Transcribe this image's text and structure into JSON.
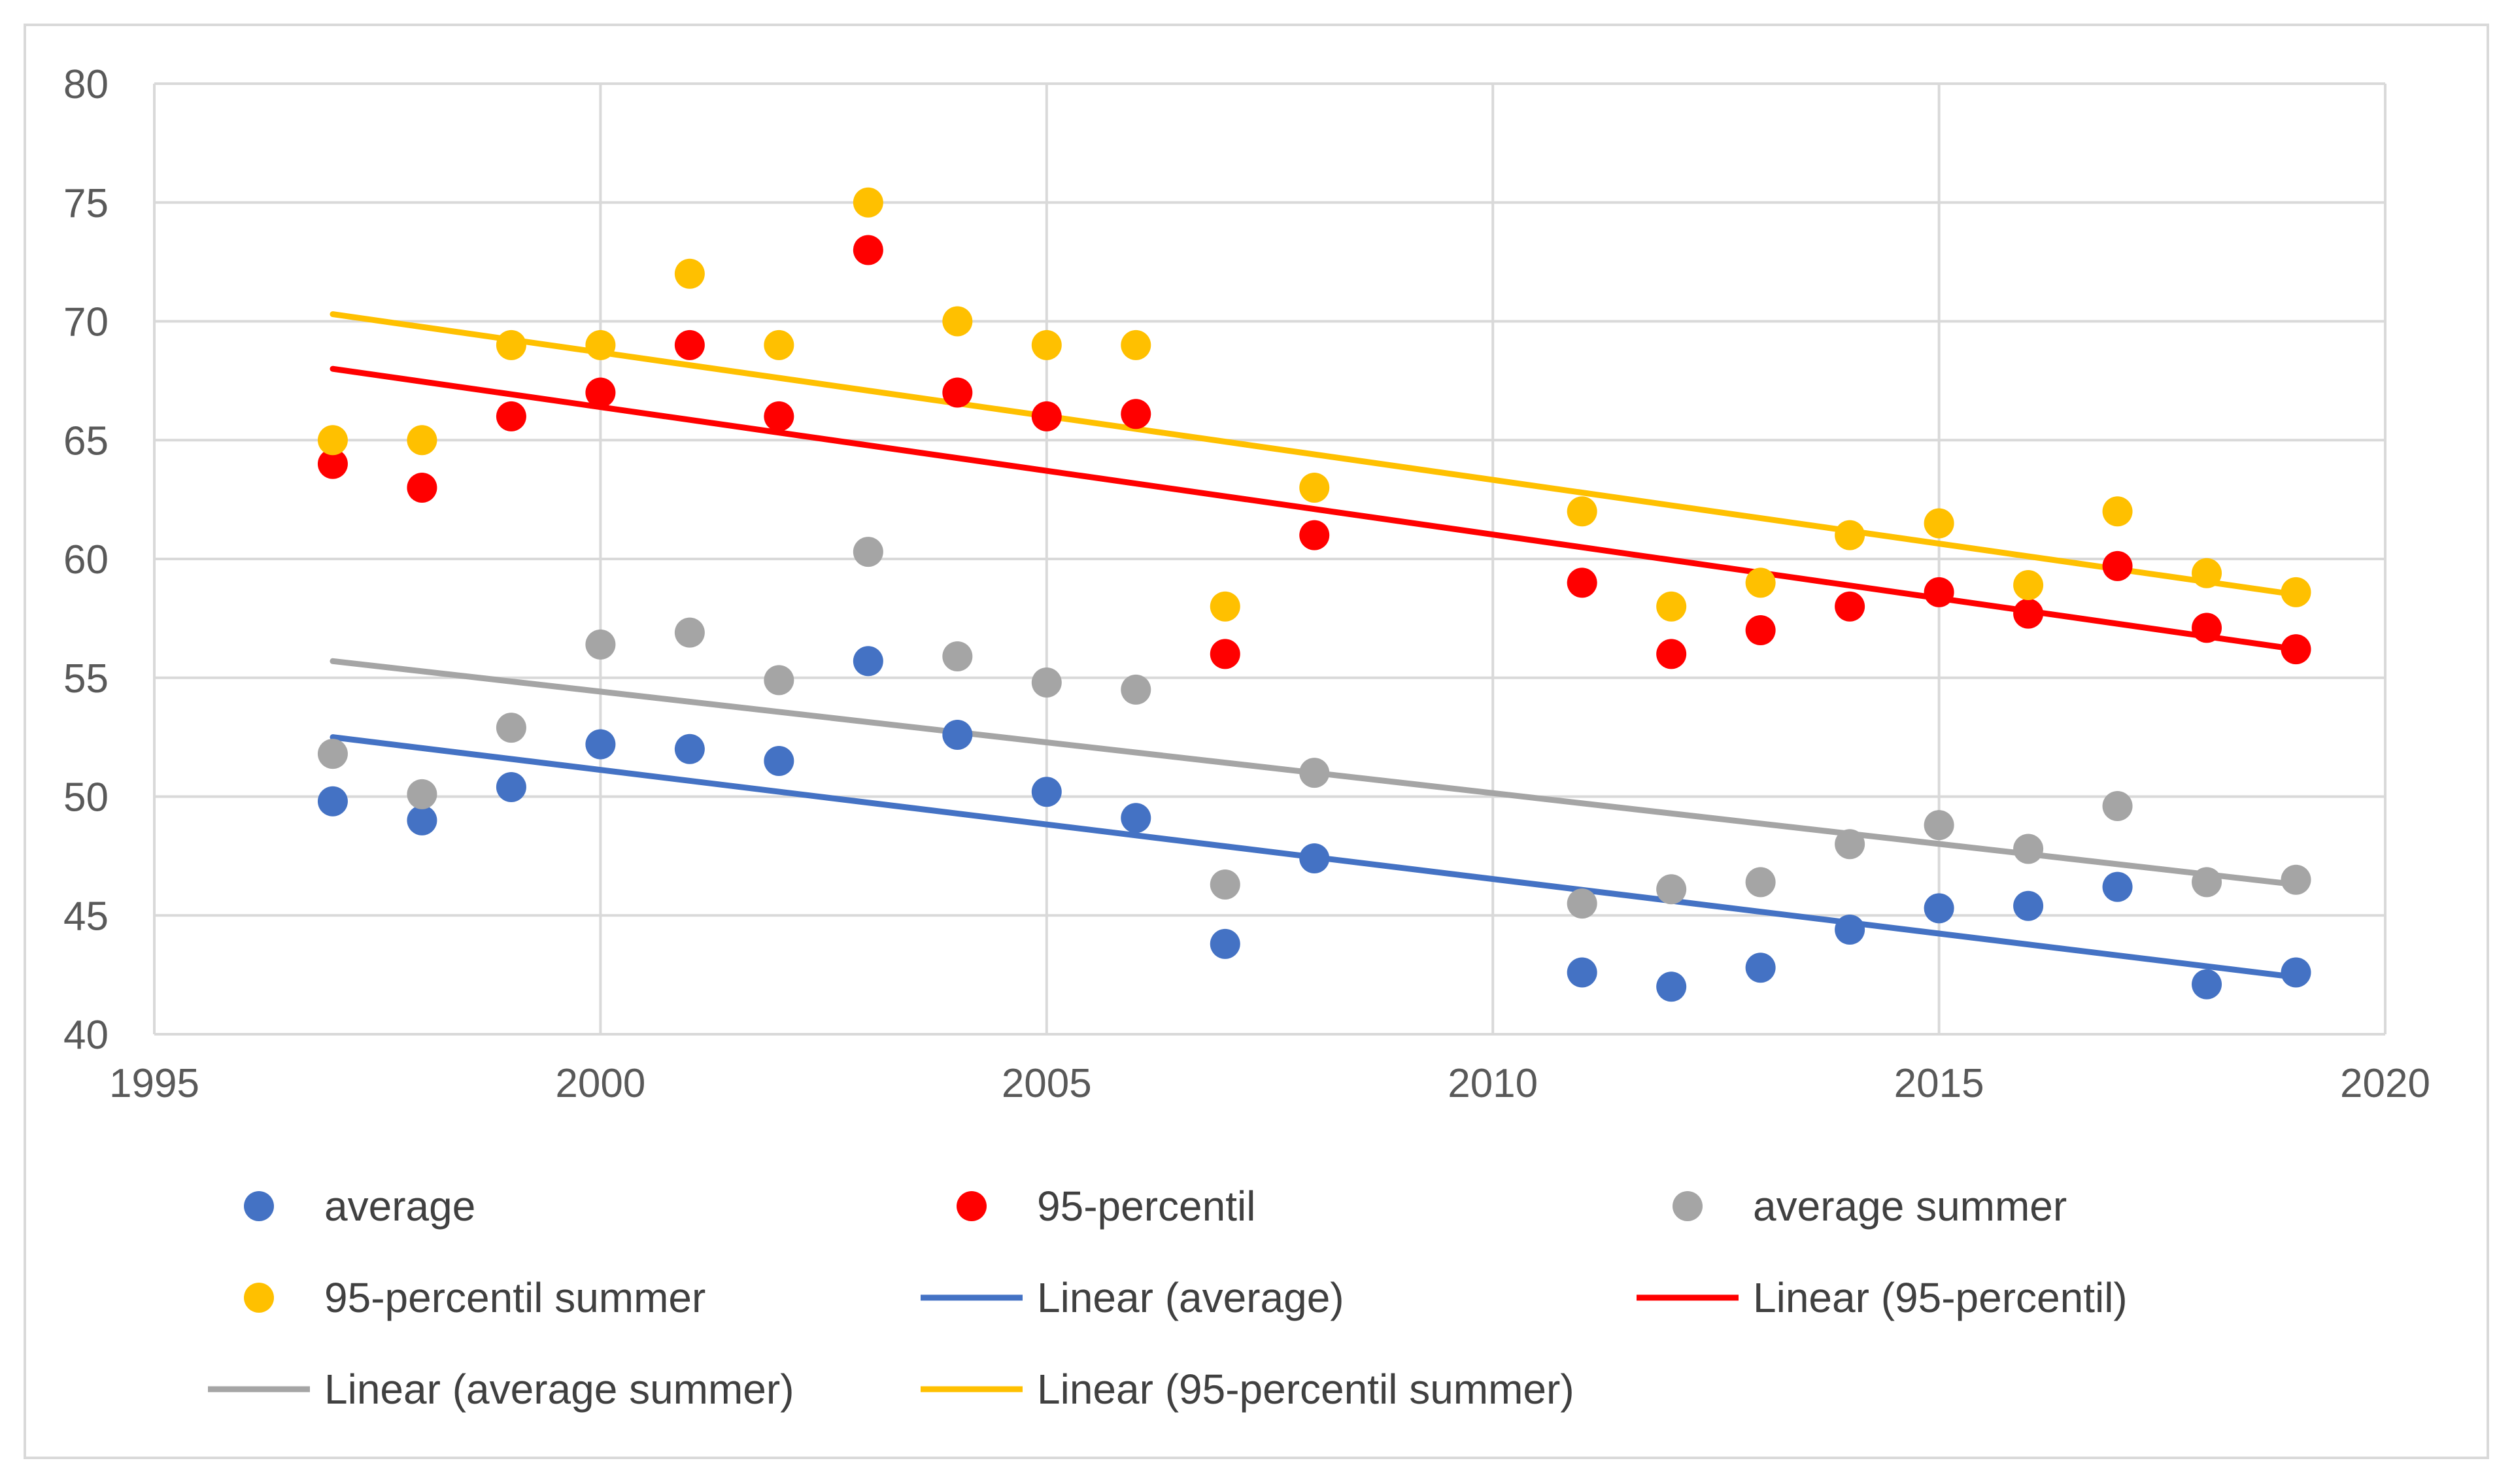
{
  "chart_data": {
    "type": "scatter",
    "title": "",
    "xlabel": "",
    "ylabel": "",
    "xlim": [
      1995,
      2020
    ],
    "ylim": [
      40,
      80
    ],
    "x_ticks": [
      1995,
      2000,
      2005,
      2010,
      2015,
      2020
    ],
    "y_ticks": [
      40,
      45,
      50,
      55,
      60,
      65,
      70,
      75,
      80
    ],
    "grid": true,
    "legend_position": "bottom",
    "series": [
      {
        "name": "average",
        "kind": "scatter",
        "color": "#4472c4",
        "x": [
          1997,
          1998,
          1999,
          2000,
          2001,
          2002,
          2003,
          2004,
          2005,
          2006,
          2007,
          2008,
          2011,
          2012,
          2013,
          2014,
          2015,
          2016,
          2017,
          2018,
          2019
        ],
        "y": [
          49.8,
          49.0,
          50.4,
          52.2,
          52.0,
          51.5,
          55.7,
          52.6,
          50.2,
          49.1,
          43.8,
          47.4,
          42.6,
          42.0,
          42.8,
          44.4,
          45.3,
          45.4,
          46.2,
          42.1,
          42.6
        ]
      },
      {
        "name": "95-percentil",
        "kind": "scatter",
        "color": "#ff0000",
        "x": [
          1997,
          1998,
          1999,
          2000,
          2001,
          2002,
          2003,
          2004,
          2005,
          2006,
          2007,
          2008,
          2011,
          2012,
          2013,
          2014,
          2015,
          2016,
          2017,
          2018,
          2019
        ],
        "y": [
          64,
          63,
          66,
          67,
          69,
          66,
          73,
          67,
          66,
          66.1,
          56,
          61,
          59,
          56,
          57,
          58,
          58.6,
          57.7,
          59.7,
          57.1,
          56.2
        ]
      },
      {
        "name": "average summer",
        "kind": "scatter",
        "color": "#a5a5a5",
        "x": [
          1997,
          1998,
          1999,
          2000,
          2001,
          2002,
          2003,
          2004,
          2005,
          2006,
          2007,
          2008,
          2011,
          2012,
          2013,
          2014,
          2015,
          2016,
          2017,
          2018,
          2019
        ],
        "y": [
          51.8,
          50.1,
          52.9,
          56.4,
          56.9,
          54.9,
          60.3,
          55.9,
          54.8,
          54.5,
          46.3,
          51.0,
          45.5,
          46.1,
          46.4,
          48.0,
          48.8,
          47.8,
          49.6,
          46.4,
          46.5
        ]
      },
      {
        "name": "95-percentil summer",
        "kind": "scatter",
        "color": "#ffc000",
        "x": [
          1997,
          1998,
          1999,
          2000,
          2001,
          2002,
          2003,
          2004,
          2005,
          2006,
          2007,
          2008,
          2011,
          2012,
          2013,
          2014,
          2015,
          2016,
          2017,
          2018,
          2019
        ],
        "y": [
          65,
          65,
          69,
          69,
          72,
          69,
          75,
          70,
          69,
          69,
          58,
          63,
          62,
          58,
          59,
          61,
          61.5,
          58.9,
          62,
          59.4,
          58.6
        ]
      },
      {
        "name": "Linear (average)",
        "kind": "trendline",
        "color": "#4472c4",
        "x": [
          1997,
          2019
        ],
        "y": [
          52.5,
          42.4
        ]
      },
      {
        "name": "Linear (95-percentil)",
        "kind": "trendline",
        "color": "#ff0000",
        "x": [
          1997,
          2019
        ],
        "y": [
          68.0,
          56.2
        ]
      },
      {
        "name": "Linear (average summer)",
        "kind": "trendline",
        "color": "#a5a5a5",
        "x": [
          1997,
          2019
        ],
        "y": [
          55.7,
          46.3
        ]
      },
      {
        "name": "Linear (95-percentil summer)",
        "kind": "trendline",
        "color": "#ffc000",
        "x": [
          1997,
          2019
        ],
        "y": [
          70.3,
          58.5
        ]
      }
    ]
  }
}
